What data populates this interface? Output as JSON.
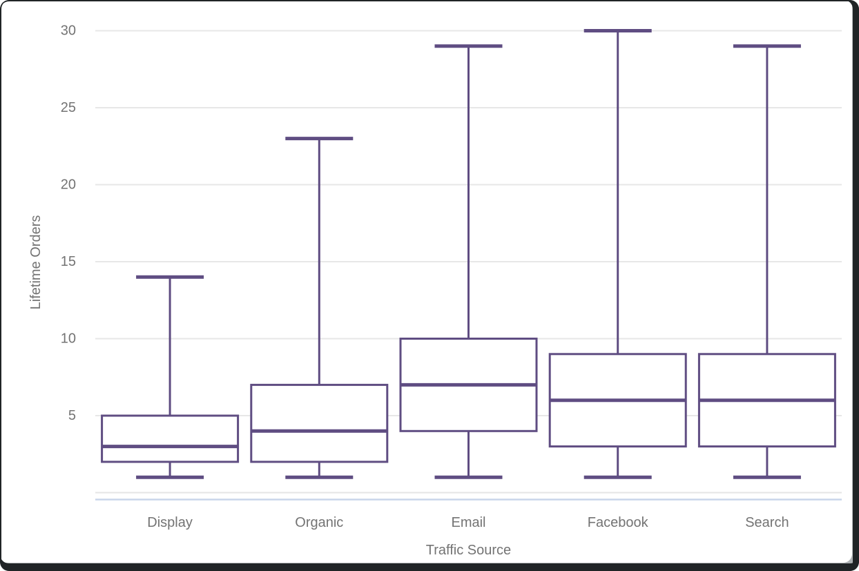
{
  "chart_data": {
    "type": "box",
    "title": "",
    "xlabel": "Traffic Source",
    "ylabel": "Lifetime Orders",
    "ylim": [
      0,
      30
    ],
    "yticks": [
      5,
      10,
      15,
      20,
      25,
      30
    ],
    "grid": "horizontal-gridlines-on",
    "legend": "none",
    "categories": [
      "Display",
      "Organic",
      "Email",
      "Facebook",
      "Search"
    ],
    "series": [
      {
        "name": "Display",
        "min": 1,
        "q1": 2,
        "median": 3,
        "q3": 5,
        "max": 14
      },
      {
        "name": "Organic",
        "min": 1,
        "q1": 2,
        "median": 4,
        "q3": 7,
        "max": 23
      },
      {
        "name": "Email",
        "min": 1,
        "q1": 4,
        "median": 7,
        "q3": 10,
        "max": 29
      },
      {
        "name": "Facebook",
        "min": 1,
        "q1": 3,
        "median": 6,
        "q3": 9,
        "max": 30
      },
      {
        "name": "Search",
        "min": 1,
        "q1": 3,
        "median": 6,
        "q3": 9,
        "max": 29
      }
    ],
    "colors": {
      "box_stroke": "#5f4d82",
      "box_fill": "#ffffff",
      "gridline": "#e7e7e7",
      "zero_line": "#e4e4e4",
      "axis_bottom_line": "#c9d5ea",
      "tick_text": "#737373",
      "frame_border": "#202426",
      "background": "#ffffff"
    }
  }
}
